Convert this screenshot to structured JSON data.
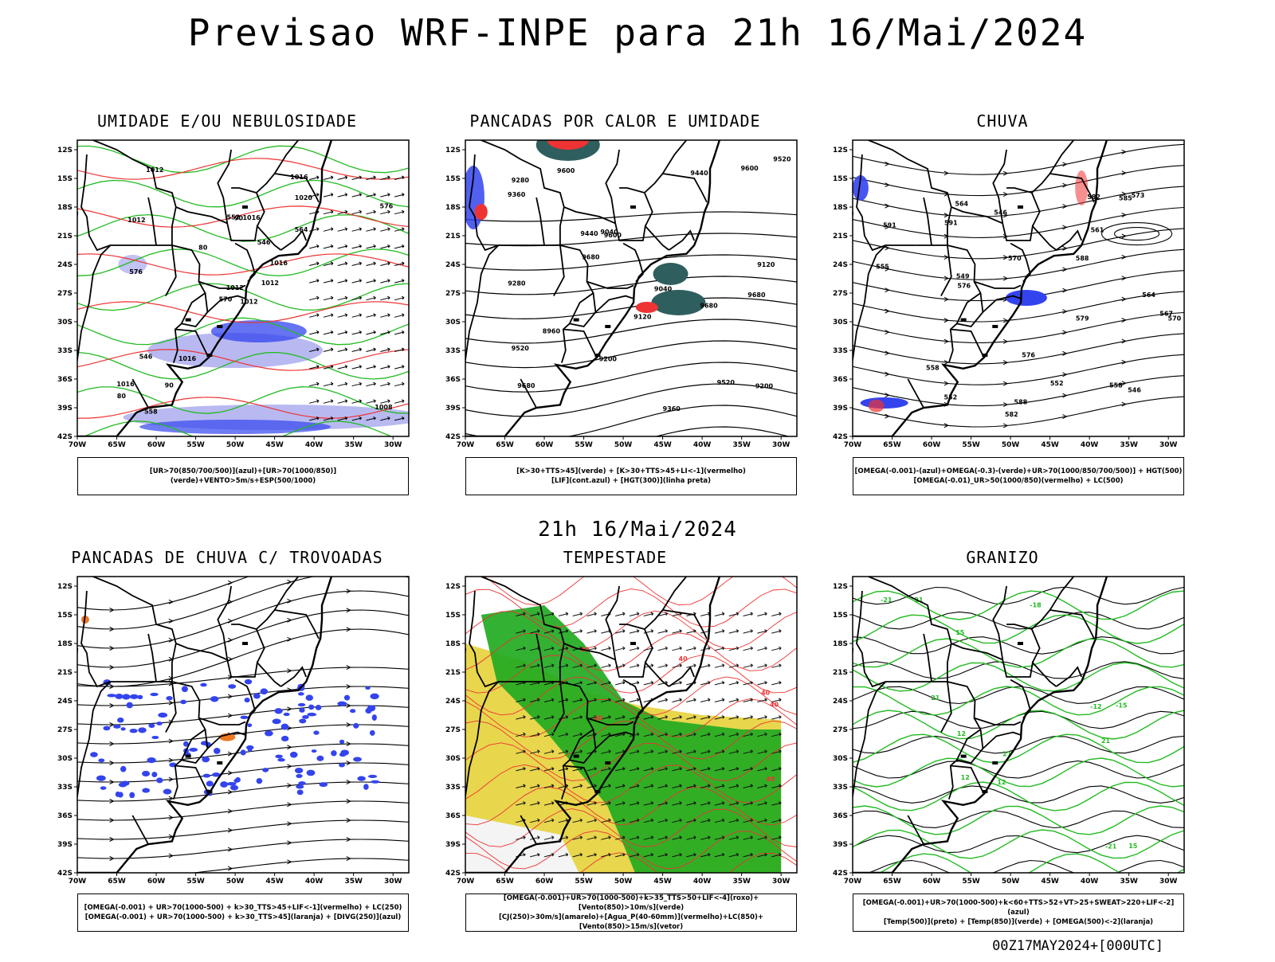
{
  "title": "Previsao WRF-INPE  para 21h 16/Mai/2024",
  "subtitle": "21h 16/Mai/2024",
  "footer": "00Z17MAY2024+[000UTC]",
  "lat_labels": [
    "12S",
    "15S",
    "18S",
    "21S",
    "24S",
    "27S",
    "30S",
    "33S",
    "36S",
    "39S",
    "42S"
  ],
  "lon_labels": [
    "70W",
    "65W",
    "60W",
    "55W",
    "50W",
    "45W",
    "40W",
    "35W",
    "30W"
  ],
  "colors": {
    "green": "#22bb22",
    "red": "#ee3333",
    "blue": "#3344ee",
    "lavender": "#a8a8ee",
    "teal": "#2f5e5e",
    "yellow": "#e6d23a",
    "orange": "#ee7722"
  },
  "panels": [
    {
      "title": "UMIDADE E/OU NEBULOSIDADE",
      "legend1": "[UR>70(850/700/500)](azul)+[UR>70(1000/850)](verde)+VENTO>5m/s+ESP(500/1000)",
      "legend2": "",
      "contour_labels": [
        "1012",
        "1012",
        "1012",
        "1016",
        "1016",
        "1016",
        "1016",
        "1016",
        "1020",
        "1012",
        "1012",
        "1008",
        "576",
        "576",
        "570",
        "564",
        "558",
        "552",
        "546",
        "546",
        "80",
        "80",
        "90",
        "90"
      ]
    },
    {
      "title": "PANCADAS POR CALOR E UMIDADE",
      "legend1": "[K>30+TTS>45](verde) + [K>30+TTS>45+LI<-1](vermelho)",
      "legend2": "[LIF](cont.azul) + [HGT(300)](linha preta)",
      "contour_labels": [
        "9680",
        "9680",
        "9680",
        "9600",
        "9600",
        "9520",
        "9520",
        "9440",
        "9440",
        "9360",
        "9360",
        "9280",
        "9280",
        "9200",
        "9200",
        "9120",
        "9120",
        "9040",
        "9040",
        "8960",
        "9520",
        "9600",
        "9680"
      ]
    },
    {
      "title": "CHUVA",
      "legend1": "[OMEGA(-0.001)-(azul)+OMEGA(-0.3)-(verde)+UR>70(1000/850/700/500)] + HGT(500)",
      "legend2": "[OMEGA(-0.01)_UR>50(1000/850)(vermelho) + LC(500)",
      "contour_labels": [
        "591",
        "591",
        "588",
        "588",
        "585",
        "582",
        "579",
        "576",
        "573",
        "570",
        "567",
        "564",
        "561",
        "558",
        "555",
        "552",
        "549",
        "546",
        "546",
        "552",
        "558",
        "564",
        "570",
        "576",
        "582"
      ]
    },
    {
      "title": "PANCADAS DE CHUVA C/ TROVOADAS",
      "legend1": "[OMEGA(-0.001) + UR>70(1000-500) + k>30_TTS>45+LIF<-1](vermelho) + LC(250)",
      "legend2": "[OMEGA(-0.001) + UR>70(1000-500) + k>30_TTS>45](laranja) + [DIVG(250)](azul)",
      "contour_labels": []
    },
    {
      "title": "TEMPESTADE",
      "legend1": "[OMEGA(-0.001)+UR>70(1000-500)+k>35_TTS>50+LIF<-4](roxo)+[Vento(850)>10m/s](verde)",
      "legend2": "[CJ(250)>30m/s](amarelo)+[Agua_P(40-60mm)](vermelho)+LC(850)+[Vento(850)>15m/s](vetor)",
      "contour_labels": [
        "40",
        "40",
        "40",
        "40",
        "40",
        "40"
      ]
    },
    {
      "title": "GRANIZO",
      "legend1": "[OMEGA(-0.001)+UR>70(1000-500)+k<60+TTS>52+VT>25+SWEAT>220+LIF<-2](azul)",
      "legend2": "[Temp(500)](preto) + [Temp(850)](verde) + [OMEGA(500)<-2](laranja)",
      "contour_labels": [
        "21",
        "21",
        "21",
        "21",
        "15",
        "15",
        "12",
        "12",
        "12",
        "-12",
        "-15",
        "-18",
        "-21",
        "-21"
      ]
    }
  ]
}
